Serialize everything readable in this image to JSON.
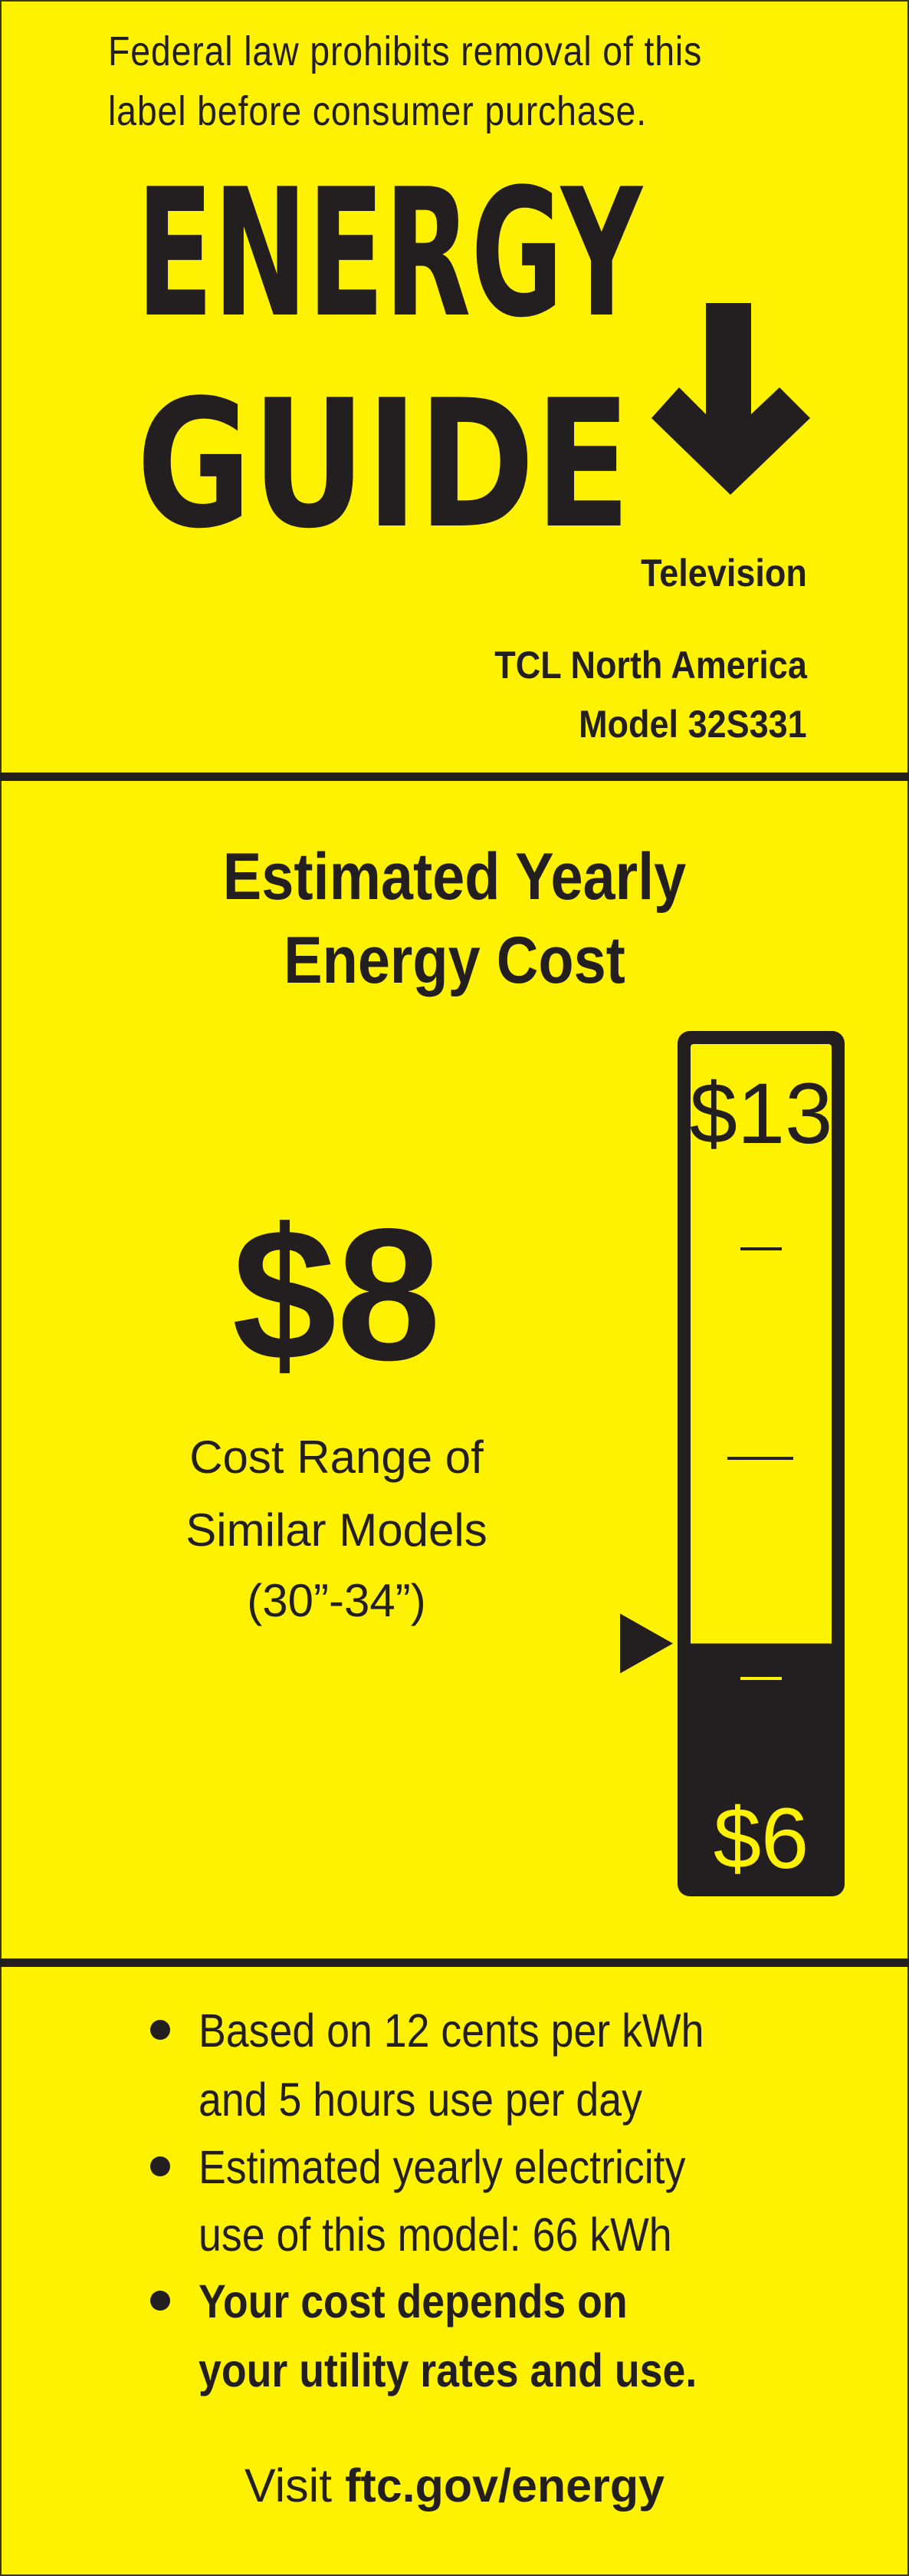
{
  "notice": {
    "line1": "Federal law prohibits removal of this",
    "line2": "label before consumer purchase."
  },
  "logo": {
    "word1": "ENERGY",
    "word2": "GUIDE",
    "icon": "down-arrow-icon"
  },
  "product": {
    "type": "Television",
    "manufacturer": "TCL North America",
    "model": "Model 32S331"
  },
  "cost_section": {
    "heading_line1": "Estimated Yearly",
    "heading_line2": "Energy Cost",
    "cost": "$8",
    "range_line1": "Cost Range of",
    "range_line2": "Similar Models",
    "range_line3": "(30”-34”)"
  },
  "scale": {
    "high_label": "$13",
    "low_label": "$6",
    "high": 13,
    "low": 6,
    "value": 8,
    "colors": {
      "fill": "#231f20",
      "background": "#fff200"
    }
  },
  "notes": {
    "b1_line1": "Based on 12 cents per kWh",
    "b1_line2": "and 5 hours use per day",
    "b2_line1": "Estimated yearly electricity",
    "b2_line2": "use of this model: 66 kWh",
    "b3_line1": "Your cost depends on",
    "b3_line2": "your utility rates and use."
  },
  "footer": {
    "visit": "Visit",
    "link": "ftc.gov/energy"
  }
}
